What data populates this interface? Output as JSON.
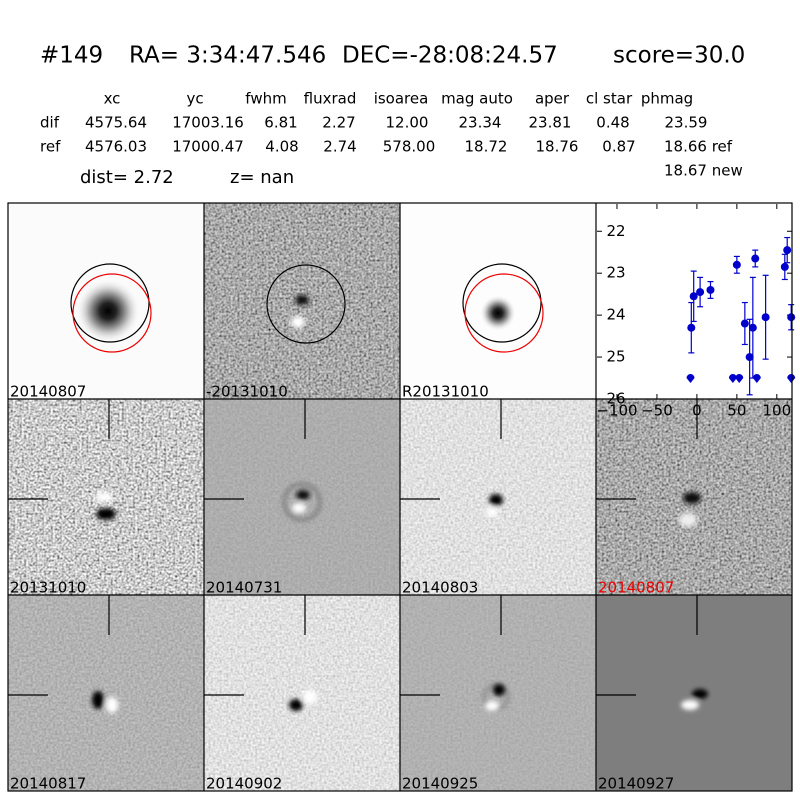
{
  "header": {
    "id": "#149",
    "ra": "RA= 3:34:47.546",
    "dec": "DEC=-28:08:24.57",
    "score": "score=30.0"
  },
  "table": {
    "columns": [
      "xc",
      "yc",
      "fwhm",
      "fluxrad",
      "isoarea",
      "mag auto",
      "aper",
      "cl star",
      "phmag"
    ],
    "rows": [
      {
        "label": "dif",
        "cells": [
          "4575.64",
          "17003.16",
          "6.81",
          "2.27",
          "12.00",
          "23.34",
          "23.81",
          "0.48",
          "23.59"
        ]
      },
      {
        "label": "ref",
        "cells": [
          "4576.03",
          "17000.47",
          "4.08",
          "2.74",
          "578.00",
          "18.72",
          "18.76",
          "0.87",
          "18.66 ref"
        ]
      }
    ],
    "extra": "18.67 new"
  },
  "dist": "dist=  2.72",
  "z": "z=   nan",
  "panels": [
    "20140807",
    "-20131010",
    "R20131010",
    "20131010",
    "20140731",
    "20140803",
    "20140807",
    "20140817",
    "20140902",
    "20140925",
    "20140927"
  ],
  "chart_data": {
    "type": "scatter",
    "xlim": [
      -125,
      119
    ],
    "ylim": [
      26,
      21.35
    ],
    "xticks": [
      {
        "value": -100,
        "label": "−100"
      },
      {
        "value": -50,
        "label": "−50"
      },
      0,
      50,
      100
    ],
    "yticks": [
      22,
      23,
      24,
      25,
      26
    ],
    "series": [
      {
        "color": "#0000cc",
        "x": [
          -7,
          -4,
          4,
          17,
          50,
          60,
          66,
          70,
          73,
          86,
          110,
          113,
          118
        ],
        "values": [
          24.3,
          23.55,
          23.45,
          23.4,
          22.8,
          24.2,
          25.0,
          24.3,
          22.65,
          24.05,
          22.85,
          22.45,
          24.05
        ],
        "errors": [
          0.6,
          0.6,
          0.35,
          0.2,
          0.2,
          0.5,
          0.9,
          1.2,
          0.2,
          1.0,
          0.3,
          0.3,
          0.3
        ]
      },
      {
        "color": "#0000cc",
        "x": [
          -8,
          45,
          53,
          75,
          118
        ],
        "values": [
          25.5,
          25.5,
          25.5,
          25.5,
          25.5
        ]
      }
    ]
  }
}
